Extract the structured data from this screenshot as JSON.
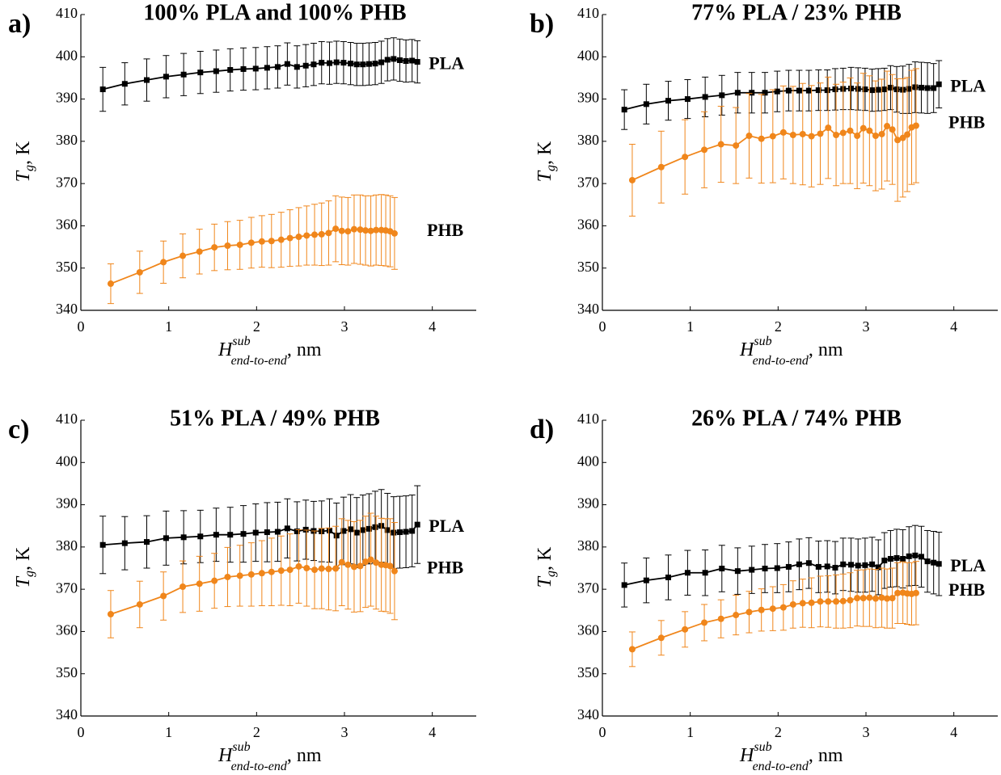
{
  "chart_data": [
    {
      "type": "errorbar-line",
      "panel": "a)",
      "title": "100% PLA and 100% PHB",
      "xlabel": {
        "symbol": "H",
        "superscript": "sub",
        "subscript": "end-to-end",
        "unit": ", nm"
      },
      "ylabel": {
        "symbol": "T",
        "subscript": "g",
        "unit": ", K"
      },
      "xlim": [
        0,
        4.5
      ],
      "xticks": [
        0,
        1,
        2,
        3,
        4
      ],
      "ylim": [
        340,
        410
      ],
      "yticks": [
        340,
        350,
        360,
        370,
        380,
        390,
        400,
        410
      ],
      "series": [
        {
          "name": "PLA",
          "color": "#000000",
          "marker": "square",
          "x": [
            0.25,
            0.5,
            0.75,
            0.97,
            1.17,
            1.36,
            1.54,
            1.7,
            1.85,
            1.99,
            2.12,
            2.24,
            2.35,
            2.46,
            2.56,
            2.65,
            2.74,
            2.83,
            2.91,
            2.99,
            3.07,
            3.14,
            3.21,
            3.28,
            3.35,
            3.42,
            3.49,
            3.56,
            3.63,
            3.7,
            3.77,
            3.83
          ],
          "values": [
            392.3,
            393.6,
            394.5,
            395.3,
            395.8,
            396.3,
            396.6,
            396.9,
            397.1,
            397.2,
            397.4,
            397.6,
            398.3,
            397.6,
            397.9,
            398.2,
            398.6,
            398.5,
            398.7,
            398.6,
            398.4,
            398.2,
            398.2,
            398.3,
            398.4,
            398.7,
            399.3,
            399.5,
            399.2,
            399.0,
            399.1,
            398.8
          ],
          "errors": [
            5.2,
            5,
            5,
            5,
            5,
            5,
            5,
            5,
            5,
            5,
            5,
            5,
            5,
            5,
            5,
            5,
            5,
            5,
            5,
            5,
            5,
            5,
            5,
            5,
            5,
            5,
            5,
            5,
            5,
            5,
            5,
            5
          ]
        },
        {
          "name": "PHB",
          "color": "#f0861b",
          "marker": "circle",
          "x": [
            0.34,
            0.67,
            0.94,
            1.16,
            1.35,
            1.52,
            1.67,
            1.81,
            1.94,
            2.06,
            2.17,
            2.28,
            2.38,
            2.48,
            2.57,
            2.66,
            2.74,
            2.82,
            2.9,
            2.97,
            3.04,
            3.11,
            3.18,
            3.24,
            3.3,
            3.36,
            3.42,
            3.47,
            3.52,
            3.57
          ],
          "values": [
            346.3,
            349,
            351.4,
            352.9,
            353.9,
            354.9,
            355.3,
            355.5,
            356,
            356.3,
            356.4,
            356.7,
            357.1,
            357.4,
            357.7,
            357.9,
            358,
            358.3,
            359.3,
            358.8,
            358.7,
            359.2,
            359.1,
            358.9,
            358.8,
            359,
            359,
            358.9,
            358.7,
            358.2
          ],
          "errors": [
            4.7,
            5,
            5,
            5.2,
            5.3,
            5.5,
            5.7,
            5.8,
            6,
            6.1,
            6.3,
            6.5,
            6.7,
            6.9,
            7,
            7.2,
            7.4,
            7.6,
            7.8,
            8,
            8,
            8.1,
            8.2,
            8.2,
            8.3,
            8.3,
            8.4,
            8.4,
            8.4,
            8.5
          ]
        }
      ]
    },
    {
      "type": "errorbar-line",
      "panel": "b)",
      "title": "77% PLA / 23% PHB",
      "xlabel": {
        "symbol": "H",
        "superscript": "sub",
        "subscript": "end-to-end",
        "unit": ", nm"
      },
      "ylabel": {
        "symbol": "T",
        "subscript": "g",
        "unit": ", K"
      },
      "xlim": [
        0,
        4.5
      ],
      "xticks": [
        0,
        1,
        2,
        3,
        4
      ],
      "ylim": [
        340,
        410
      ],
      "yticks": [
        340,
        350,
        360,
        370,
        380,
        390,
        400,
        410
      ],
      "series": [
        {
          "name": "PLA",
          "color": "#000000",
          "marker": "square",
          "x": [
            0.25,
            0.5,
            0.75,
            0.97,
            1.17,
            1.36,
            1.54,
            1.7,
            1.85,
            1.99,
            2.12,
            2.24,
            2.35,
            2.46,
            2.56,
            2.65,
            2.74,
            2.83,
            2.91,
            2.99,
            3.07,
            3.14,
            3.21,
            3.28,
            3.35,
            3.42,
            3.49,
            3.56,
            3.63,
            3.7,
            3.77,
            3.83
          ],
          "values": [
            387.5,
            388.8,
            389.6,
            390,
            390.5,
            390.9,
            391.5,
            391.5,
            391.5,
            391.8,
            392,
            392,
            392,
            392.1,
            392.1,
            392.3,
            392.4,
            392.5,
            392.4,
            392.3,
            392.1,
            392.2,
            392.3,
            392.7,
            392.3,
            392.2,
            392.4,
            392.8,
            392.7,
            392.6,
            392.6,
            393.5
          ],
          "errors": [
            4.7,
            4.7,
            4.6,
            4.6,
            4.7,
            4.7,
            4.8,
            4.8,
            4.8,
            4.8,
            4.8,
            4.8,
            4.8,
            4.8,
            4.8,
            4.9,
            4.9,
            5,
            5,
            5,
            5,
            5,
            5,
            5.2,
            5.4,
            5.6,
            5.8,
            6,
            6,
            6,
            5.8,
            5.6
          ]
        },
        {
          "name": "PHB",
          "color": "#f0861b",
          "marker": "circle",
          "x": [
            0.34,
            0.67,
            0.94,
            1.16,
            1.35,
            1.52,
            1.67,
            1.81,
            1.94,
            2.06,
            2.17,
            2.28,
            2.38,
            2.48,
            2.57,
            2.66,
            2.74,
            2.82,
            2.9,
            2.97,
            3.04,
            3.11,
            3.18,
            3.24,
            3.3,
            3.36,
            3.42,
            3.47,
            3.52,
            3.57
          ],
          "values": [
            370.8,
            373.9,
            376.3,
            378,
            379.3,
            379,
            381.3,
            380.6,
            381.2,
            382.1,
            381.5,
            381.7,
            381.2,
            381.8,
            383.2,
            381.5,
            382,
            382.5,
            381.3,
            383.1,
            382.5,
            381.3,
            381.7,
            383.6,
            382.8,
            380.3,
            380.8,
            381.6,
            383.3,
            383.7
          ],
          "errors": [
            8.5,
            8.5,
            8.8,
            9,
            9,
            9,
            10,
            10.5,
            11,
            11,
            11.5,
            12,
            12,
            12,
            12,
            12,
            12,
            12.5,
            12.5,
            13,
            13,
            13,
            13,
            13,
            13,
            14.5,
            14,
            13.5,
            13.5,
            13.5
          ]
        }
      ]
    },
    {
      "type": "errorbar-line",
      "panel": "c)",
      "title": "51% PLA / 49% PHB",
      "xlabel": {
        "symbol": "H",
        "superscript": "sub",
        "subscript": "end-to-end",
        "unit": ", nm"
      },
      "ylabel": {
        "symbol": "T",
        "subscript": "g",
        "unit": ", K"
      },
      "xlim": [
        0,
        4.5
      ],
      "xticks": [
        0,
        1,
        2,
        3,
        4
      ],
      "ylim": [
        340,
        410
      ],
      "yticks": [
        340,
        350,
        360,
        370,
        380,
        390,
        400,
        410
      ],
      "series": [
        {
          "name": "PLA",
          "color": "#000000",
          "marker": "square",
          "x": [
            0.25,
            0.5,
            0.75,
            0.97,
            1.17,
            1.36,
            1.54,
            1.7,
            1.85,
            1.99,
            2.12,
            2.24,
            2.35,
            2.46,
            2.56,
            2.65,
            2.74,
            2.83,
            2.91,
            2.99,
            3.07,
            3.14,
            3.21,
            3.28,
            3.35,
            3.42,
            3.49,
            3.56,
            3.63,
            3.7,
            3.77,
            3.83
          ],
          "values": [
            380.5,
            380.9,
            381.2,
            382.1,
            382.3,
            382.5,
            382.9,
            382.9,
            383.1,
            383.4,
            383.5,
            383.6,
            384.4,
            383.7,
            384.1,
            383.8,
            383.7,
            383.9,
            382.7,
            383.8,
            384.2,
            383.4,
            384,
            384.3,
            384.7,
            385,
            384,
            383.4,
            383.5,
            383.6,
            383.8,
            385.3
          ],
          "errors": [
            6.8,
            6.3,
            6.2,
            6.4,
            6.3,
            6.2,
            6.3,
            6.5,
            6.7,
            6.8,
            7,
            7,
            7,
            7,
            7,
            7,
            7.2,
            7.5,
            7.7,
            8,
            8.2,
            8.3,
            8.3,
            8.3,
            8.5,
            8.6,
            8.7,
            8.5,
            8.5,
            8.5,
            8.5,
            9.2
          ]
        },
        {
          "name": "PHB",
          "color": "#f0861b",
          "marker": "circle",
          "x": [
            0.34,
            0.67,
            0.94,
            1.16,
            1.35,
            1.52,
            1.67,
            1.81,
            1.94,
            2.06,
            2.17,
            2.28,
            2.38,
            2.48,
            2.57,
            2.66,
            2.74,
            2.82,
            2.9,
            2.97,
            3.04,
            3.11,
            3.18,
            3.24,
            3.3,
            3.36,
            3.42,
            3.47,
            3.52,
            3.57
          ],
          "values": [
            364.1,
            366.4,
            368.4,
            370.6,
            371.3,
            372,
            372.9,
            373.2,
            373.5,
            373.8,
            374.1,
            374.4,
            374.6,
            375.4,
            375,
            374.6,
            374.9,
            374.8,
            374.9,
            376.4,
            375.8,
            375.3,
            375.5,
            376.5,
            377,
            376.3,
            375.8,
            375.7,
            375.5,
            374.3
          ],
          "errors": [
            5.6,
            5.5,
            5.7,
            6.1,
            6.5,
            6.5,
            7,
            7.2,
            7.5,
            7.7,
            8,
            8.2,
            8.5,
            8.7,
            9,
            9.2,
            9.5,
            9.7,
            10,
            10.3,
            10.5,
            10.7,
            10.8,
            10.8,
            11,
            11,
            11,
            11,
            11.2,
            11.5
          ]
        }
      ]
    },
    {
      "type": "errorbar-line",
      "panel": "d)",
      "title": "26% PLA / 74% PHB",
      "xlabel": {
        "symbol": "H",
        "superscript": "sub",
        "subscript": "end-to-end",
        "unit": ", nm"
      },
      "ylabel": {
        "symbol": "T",
        "subscript": "g",
        "unit": ", K"
      },
      "xlim": [
        0,
        4.5
      ],
      "xticks": [
        0,
        1,
        2,
        3,
        4
      ],
      "ylim": [
        340,
        410
      ],
      "yticks": [
        340,
        350,
        360,
        370,
        380,
        390,
        400,
        410
      ],
      "series": [
        {
          "name": "PLA",
          "color": "#000000",
          "marker": "square",
          "x": [
            0.25,
            0.5,
            0.75,
            0.97,
            1.17,
            1.36,
            1.54,
            1.7,
            1.85,
            1.99,
            2.12,
            2.24,
            2.35,
            2.46,
            2.56,
            2.65,
            2.74,
            2.83,
            2.91,
            2.99,
            3.07,
            3.14,
            3.21,
            3.28,
            3.35,
            3.42,
            3.49,
            3.56,
            3.63,
            3.7,
            3.77,
            3.83
          ],
          "values": [
            371,
            372.1,
            372.8,
            373.9,
            373.9,
            374.9,
            374.3,
            374.6,
            374.9,
            375,
            375.3,
            375.9,
            376.2,
            375.3,
            375.4,
            375.1,
            375.9,
            375.8,
            375.6,
            375.7,
            375.9,
            375.2,
            376.8,
            377.2,
            377.4,
            377.2,
            377.8,
            378,
            377.7,
            376.6,
            376.3,
            376
          ],
          "errors": [
            5.2,
            5.3,
            5.3,
            5.3,
            5.4,
            5.5,
            5.5,
            5.6,
            5.7,
            5.8,
            5.9,
            6,
            6,
            6.1,
            6.1,
            6.2,
            6.2,
            6.3,
            6.3,
            6.4,
            6.4,
            6.5,
            6.6,
            6.7,
            6.8,
            6.9,
            7,
            7.1,
            7.2,
            7.3,
            7.4,
            7.5
          ]
        },
        {
          "name": "PHB",
          "color": "#f0861b",
          "marker": "circle",
          "x": [
            0.34,
            0.67,
            0.94,
            1.16,
            1.35,
            1.52,
            1.67,
            1.81,
            1.94,
            2.06,
            2.17,
            2.28,
            2.38,
            2.48,
            2.57,
            2.66,
            2.74,
            2.82,
            2.9,
            2.97,
            3.04,
            3.11,
            3.18,
            3.24,
            3.3,
            3.36,
            3.42,
            3.47,
            3.52,
            3.57
          ],
          "values": [
            355.8,
            358.5,
            360.5,
            362.1,
            363,
            363.9,
            364.6,
            365.1,
            365.4,
            365.7,
            366.4,
            366.7,
            366.8,
            367.1,
            367.1,
            367.1,
            367.2,
            367.4,
            367.9,
            367.9,
            368,
            367.8,
            368,
            367.8,
            367.9,
            369.1,
            369.2,
            369,
            368.9,
            369.1
          ],
          "errors": [
            4.1,
            4.1,
            4.2,
            4.3,
            4.5,
            4.7,
            4.9,
            5,
            5.2,
            5.4,
            5.6,
            5.7,
            5.9,
            6,
            6.1,
            6.3,
            6.4,
            6.5,
            6.6,
            6.7,
            6.8,
            6.9,
            7,
            7,
            7.1,
            7.2,
            7.3,
            7.3,
            7.4,
            7.5
          ]
        }
      ]
    }
  ]
}
